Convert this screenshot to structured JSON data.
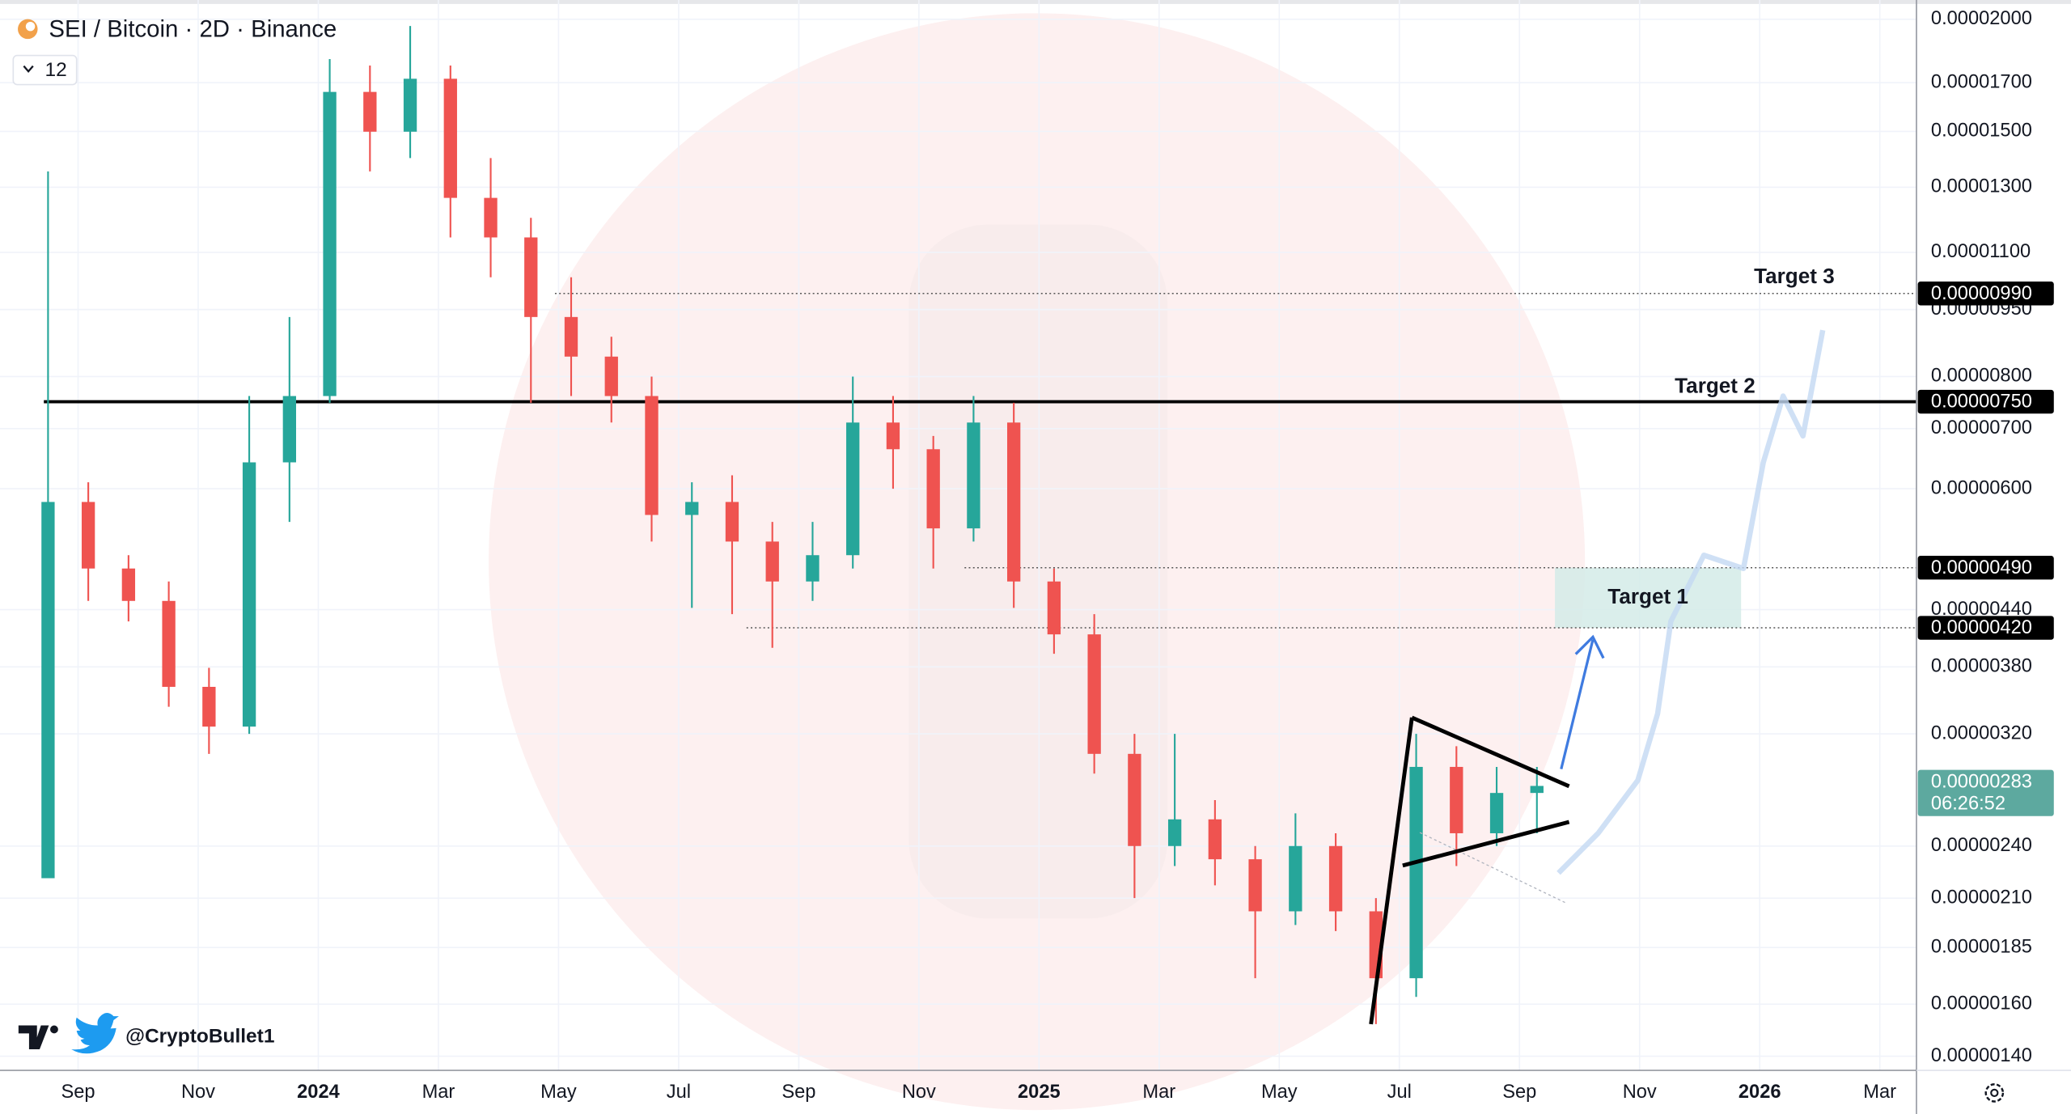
{
  "chart_data": {
    "type": "candlestick",
    "title": "SEI / Bitcoin · 2D · Binance",
    "interval_badge": "12",
    "watermark": "@CryptoBullet1",
    "log_scale": true,
    "grid": true,
    "up_color": "#26a69a",
    "down_color": "#ef5350",
    "x": [
      -0.5,
      0.17,
      0.84,
      1.51,
      2.18,
      2.85,
      3.52,
      4.19,
      4.86,
      5.53,
      6.2,
      6.87,
      7.54,
      8.21,
      8.88,
      9.55,
      10.22,
      10.89,
      11.56,
      12.23,
      12.9,
      13.57,
      14.24,
      14.91,
      15.58,
      16.25,
      16.92,
      17.59,
      18.26,
      18.93,
      19.6,
      20.27,
      20.94,
      21.61,
      22.28,
      22.95,
      23.62,
      24.29
    ],
    "open": [
      2.21e-06,
      5.8e-06,
      4.89e-06,
      4.5e-06,
      3.61e-06,
      3.26e-06,
      6.42e-06,
      7.61e-06,
      1.66e-05,
      1.499e-05,
      1.717e-05,
      1.265e-05,
      1.143e-05,
      9.32e-06,
      8.42e-06,
      7.61e-06,
      5.61e-06,
      5.8e-06,
      5.24e-06,
      4.73e-06,
      5.06e-06,
      7.11e-06,
      6.64e-06,
      5.42e-06,
      7.11e-06,
      4.73e-06,
      4.13e-06,
      3.04e-06,
      2.4e-06,
      2.57e-06,
      2.32e-06,
      2.03e-06,
      2.4e-06,
      2.03e-06,
      1.71e-06,
      2.94e-06,
      2.48e-06,
      2.75e-06
    ],
    "high": [
      1.354e-05,
      6.1e-06,
      5.06e-06,
      4.73e-06,
      3.79e-06,
      7.61e-06,
      9.32e-06,
      1.806e-05,
      1.776e-05,
      1.966e-05,
      1.776e-05,
      1.401e-05,
      1.202e-05,
      1.032e-05,
      8.86e-06,
      8e-06,
      6.1e-06,
      6.21e-06,
      5.51e-06,
      5.51e-06,
      8e-06,
      7.61e-06,
      6.87e-06,
      7.61e-06,
      7.48e-06,
      4.89e-06,
      4.35e-06,
      3.2e-06,
      3.2e-06,
      2.7e-06,
      2.4e-06,
      2.61e-06,
      2.48e-06,
      2.1e-06,
      3.2e-06,
      3.1e-06,
      2.94e-06,
      2.94e-06
    ],
    "low": [
      2.21e-06,
      4.5e-06,
      4.27e-06,
      3.43e-06,
      3.04e-06,
      3.2e-06,
      5.51e-06,
      7.48e-06,
      1.354e-05,
      1.401e-05,
      1.143e-05,
      1.032e-05,
      7.48e-06,
      7.61e-06,
      7.11e-06,
      5.24e-06,
      4.42e-06,
      4.35e-06,
      3.99e-06,
      4.5e-06,
      4.89e-06,
      6e-06,
      4.89e-06,
      5.24e-06,
      4.42e-06,
      3.93e-06,
      2.89e-06,
      2.1e-06,
      2.28e-06,
      2.17e-06,
      1.71e-06,
      1.96e-06,
      1.93e-06,
      1.52e-06,
      1.63e-06,
      2.28e-06,
      2.4e-06,
      2.48e-06
    ],
    "close": [
      5.8e-06,
      4.89e-06,
      4.5e-06,
      3.61e-06,
      3.26e-06,
      6.42e-06,
      7.61e-06,
      1.66e-05,
      1.499e-05,
      1.717e-05,
      1.265e-05,
      1.143e-05,
      9.32e-06,
      8.42e-06,
      7.61e-06,
      5.61e-06,
      5.8e-06,
      5.24e-06,
      4.73e-06,
      5.06e-06,
      7.11e-06,
      6.64e-06,
      5.42e-06,
      7.11e-06,
      4.73e-06,
      4.13e-06,
      3.04e-06,
      2.4e-06,
      2.57e-06,
      2.32e-06,
      2.03e-06,
      2.4e-06,
      2.03e-06,
      1.71e-06,
      2.94e-06,
      2.48e-06,
      2.75e-06,
      2.8e-06
    ],
    "projection": {
      "x": [
        24.65,
        25.31,
        25.97,
        26.3,
        26.52,
        27.07,
        27.73,
        28.06,
        28.39,
        28.72,
        29.05
      ],
      "values": [
        2.24e-06,
        2.48e-06,
        2.84e-06,
        3.37e-06,
        4.27e-06,
        5.06e-06,
        4.89e-06,
        6.42e-06,
        7.61e-06,
        6.87e-06,
        9.01e-06
      ],
      "color": "#c3d8f3"
    },
    "xlim": [
      -1.3,
      30.61
    ],
    "ylim": [
      1.35e-06,
      2.08e-05
    ],
    "xticks": [
      {
        "value": 0,
        "label": "Sep"
      },
      {
        "value": 2,
        "label": "Nov"
      },
      {
        "value": 4,
        "label": "2024"
      },
      {
        "value": 6,
        "label": "Mar"
      },
      {
        "value": 8,
        "label": "May"
      },
      {
        "value": 10,
        "label": "Jul"
      },
      {
        "value": 12,
        "label": "Sep"
      },
      {
        "value": 14,
        "label": "Nov"
      },
      {
        "value": 16,
        "label": "2025"
      },
      {
        "value": 18,
        "label": "Mar"
      },
      {
        "value": 20,
        "label": "May"
      },
      {
        "value": 22,
        "label": "Jul"
      },
      {
        "value": 24,
        "label": "Sep"
      },
      {
        "value": 26,
        "label": "Nov"
      },
      {
        "value": 28,
        "label": "2026"
      },
      {
        "value": 30,
        "label": "Mar"
      }
    ],
    "yticks": [
      {
        "value": 2e-05,
        "label": "0.00002000"
      },
      {
        "value": 1.7e-05,
        "label": "0.00001700"
      },
      {
        "value": 1.5e-05,
        "label": "0.00001500"
      },
      {
        "value": 1.3e-05,
        "label": "0.00001300"
      },
      {
        "value": 1.1e-05,
        "label": "0.00001100"
      },
      {
        "value": 9.5e-06,
        "label": "0.00000950"
      },
      {
        "value": 8e-06,
        "label": "0.00000800"
      },
      {
        "value": 7e-06,
        "label": "0.00000700"
      },
      {
        "value": 6e-06,
        "label": "0.00000600"
      },
      {
        "value": 4.4e-06,
        "label": "0.00000440"
      },
      {
        "value": 3.8e-06,
        "label": "0.00000380"
      },
      {
        "value": 3.2e-06,
        "label": "0.00000320"
      },
      {
        "value": 2.4e-06,
        "label": "0.00000240"
      },
      {
        "value": 2.1e-06,
        "label": "0.00000210"
      },
      {
        "value": 1.85e-06,
        "label": "0.00000185"
      },
      {
        "value": 1.6e-06,
        "label": "0.00000160"
      },
      {
        "value": 1.4e-06,
        "label": "0.00000140"
      }
    ],
    "levels": [
      {
        "name": "Target 3",
        "value": 9.9e-06,
        "label": "0.00000990",
        "x_start": 7.94,
        "style": "dotted"
      },
      {
        "name": "Target 2",
        "value": 7.5e-06,
        "label": "0.00000750",
        "x_start": -0.57,
        "style": "solid"
      },
      {
        "value": 4.9e-06,
        "label": "0.00000490",
        "x_start": 14.76,
        "style": "dotted"
      },
      {
        "value": 4.2e-06,
        "label": "0.00000420",
        "x_start": 11.13,
        "style": "dotted"
      }
    ],
    "target_zone": {
      "name": "Target 1",
      "low": 4.2e-06,
      "high": 4.9e-06,
      "x_start": 24.59,
      "x_end": 27.69,
      "color": "#d3ebe8"
    },
    "last_price": {
      "value": 2.83e-06,
      "label": "0.00000283",
      "countdown": "06:26:52",
      "color": "#5da99f"
    }
  }
}
